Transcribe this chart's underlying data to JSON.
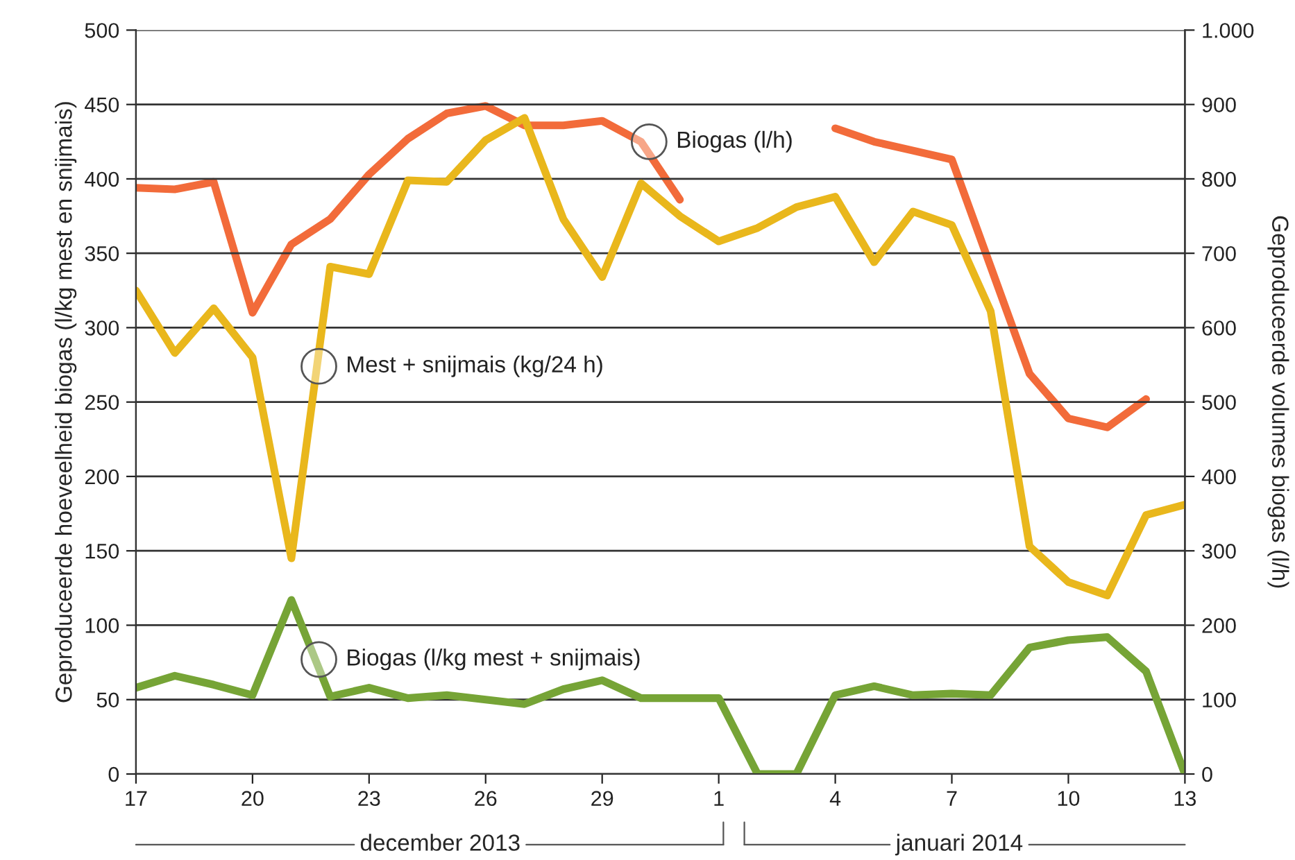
{
  "chart_data": {
    "type": "line",
    "ylabel": "Geproduceerde hoeveelheid biogas (l/kg mest en snijmais)",
    "y2label": "Geproduceerde volumes biogas (l/h)",
    "x": [
      "2013-12-17",
      "2013-12-18",
      "2013-12-19",
      "2013-12-20",
      "2013-12-21",
      "2013-12-22",
      "2013-12-23",
      "2013-12-24",
      "2013-12-25",
      "2013-12-26",
      "2013-12-27",
      "2013-12-28",
      "2013-12-29",
      "2013-12-30",
      "2013-12-31",
      "2014-01-01",
      "2014-01-02",
      "2014-01-03",
      "2014-01-04",
      "2014-01-05",
      "2014-01-06",
      "2014-01-07",
      "2014-01-08",
      "2014-01-09",
      "2014-01-10",
      "2014-01-11",
      "2014-01-12",
      "2014-01-13"
    ],
    "series": [
      {
        "color": "#f26b3a",
        "axis": "y2",
        "values": [
          788,
          786,
          796,
          620,
          712,
          746,
          806,
          854,
          888,
          898,
          872,
          872,
          878,
          850,
          772,
          null,
          null,
          null,
          868,
          850,
          838,
          826,
          682,
          538,
          478,
          466,
          504,
          null
        ]
      },
      {
        "color": "#e9b71c",
        "values": [
          325,
          283,
          313,
          280,
          145,
          341,
          336,
          399,
          398,
          426,
          441,
          373,
          334,
          397,
          375,
          358,
          367,
          381,
          388,
          344,
          378,
          369,
          311,
          153,
          129,
          120,
          174,
          181
        ]
      },
      {
        "color": "#76a436",
        "values": [
          58,
          66,
          60,
          53,
          117,
          52,
          58,
          51,
          53,
          50,
          47,
          57,
          63,
          51,
          51,
          51,
          0,
          0,
          53,
          59,
          53,
          54,
          53,
          85,
          90,
          92,
          69,
          0
        ]
      }
    ],
    "xlim": [
      "2013-12-17",
      "2014-01-13"
    ],
    "xticks": [
      {
        "value": "2013-12-17",
        "label": "17"
      },
      {
        "value": "2013-12-20",
        "label": "20"
      },
      {
        "value": "2013-12-23",
        "label": "23"
      },
      {
        "value": "2013-12-26",
        "label": "26"
      },
      {
        "value": "2013-12-29",
        "label": "29"
      },
      {
        "value": "2014-01-01",
        "label": "1"
      },
      {
        "value": "2014-01-04",
        "label": "4"
      },
      {
        "value": "2014-01-07",
        "label": "7"
      },
      {
        "value": "2014-01-10",
        "label": "10"
      },
      {
        "value": "2014-01-13",
        "label": "13"
      }
    ],
    "ylim": [
      0,
      500
    ],
    "yticks": [
      0,
      50,
      100,
      150,
      200,
      250,
      300,
      350,
      400,
      450,
      500
    ],
    "y2lim": [
      0,
      1000
    ],
    "y2ticks": [
      0,
      100,
      200,
      300,
      400,
      500,
      600,
      700,
      800,
      900,
      {
        "value": 1000,
        "label": "1.000"
      }
    ],
    "grid": "y",
    "line_style": "solid",
    "marker": "none",
    "annotations": [
      {
        "text": "Biogas (l/h)",
        "x": "2013-12-30T05:00",
        "y": 425
      },
      {
        "text": "Mest + snijmais (kg/24 h)",
        "x": "2013-12-21T17:00",
        "y": 274
      },
      {
        "text": "Biogas (l/kg mest + snijmais)",
        "x": "2013-12-21T17:00",
        "y": 77
      },
      "december 2013",
      "januari 2014"
    ]
  }
}
